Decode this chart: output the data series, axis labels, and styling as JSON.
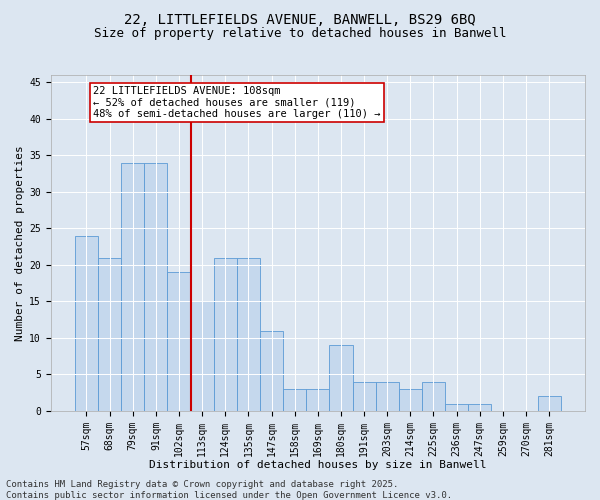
{
  "title_line1": "22, LITTLEFIELDS AVENUE, BANWELL, BS29 6BQ",
  "title_line2": "Size of property relative to detached houses in Banwell",
  "xlabel": "Distribution of detached houses by size in Banwell",
  "ylabel": "Number of detached properties",
  "categories": [
    "57sqm",
    "68sqm",
    "79sqm",
    "91sqm",
    "102sqm",
    "113sqm",
    "124sqm",
    "135sqm",
    "147sqm",
    "158sqm",
    "169sqm",
    "180sqm",
    "191sqm",
    "203sqm",
    "214sqm",
    "225sqm",
    "236sqm",
    "247sqm",
    "259sqm",
    "270sqm",
    "281sqm"
  ],
  "values": [
    24,
    21,
    34,
    34,
    19,
    15,
    21,
    21,
    11,
    3,
    3,
    9,
    4,
    4,
    3,
    4,
    1,
    1,
    0,
    0,
    2
  ],
  "bar_color": "#c5d8ed",
  "bar_edge_color": "#5b9bd5",
  "vline_x_idx": 4,
  "vline_color": "#cc0000",
  "annotation_box_text": "22 LITTLEFIELDS AVENUE: 108sqm\n← 52% of detached houses are smaller (119)\n48% of semi-detached houses are larger (110) →",
  "annotation_box_color": "#cc0000",
  "annotation_box_fill": "#ffffff",
  "ylim": [
    0,
    46
  ],
  "yticks": [
    0,
    5,
    10,
    15,
    20,
    25,
    30,
    35,
    40,
    45
  ],
  "background_color": "#dce6f1",
  "plot_bg_color": "#dce6f1",
  "footer_text": "Contains HM Land Registry data © Crown copyright and database right 2025.\nContains public sector information licensed under the Open Government Licence v3.0.",
  "title_fontsize": 10,
  "subtitle_fontsize": 9,
  "axis_label_fontsize": 8,
  "tick_fontsize": 7,
  "annotation_fontsize": 7.5,
  "footer_fontsize": 6.5
}
